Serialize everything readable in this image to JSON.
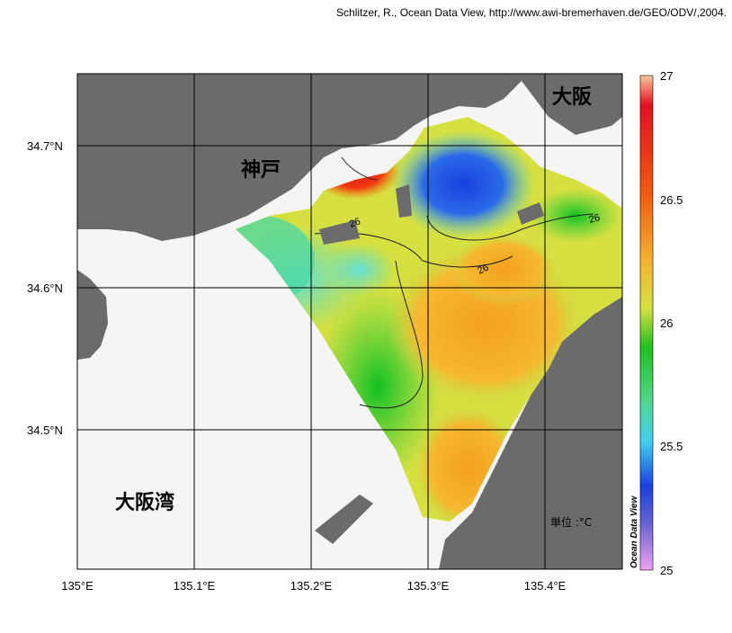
{
  "credit": "Schlitzer, R., Ocean Data View, http://www.awi-bremerhaven.de/GEO/ODV/,2004.",
  "map": {
    "lon_ticks": [
      "135°E",
      "135.1°E",
      "135.2°E",
      "135.3°E",
      "135.4°E"
    ],
    "lat_ticks": [
      "34.7°N",
      "34.6°N",
      "34.5°N"
    ],
    "place_names": {
      "osaka": "大阪",
      "kobe": "神戸",
      "osaka_bay": "大阪湾"
    },
    "contour_labels": [
      "26",
      "26",
      "26"
    ],
    "unit": "単位 :°C",
    "grid": true
  },
  "colorbar": {
    "title": "Ocean Data View",
    "ticks": [
      "27",
      "26.5",
      "26",
      "25.5",
      "25"
    ],
    "min": 25,
    "max": 27
  },
  "colors": {
    "land": "#6b6b6b",
    "sea_nodata": "#f5f5f5"
  }
}
